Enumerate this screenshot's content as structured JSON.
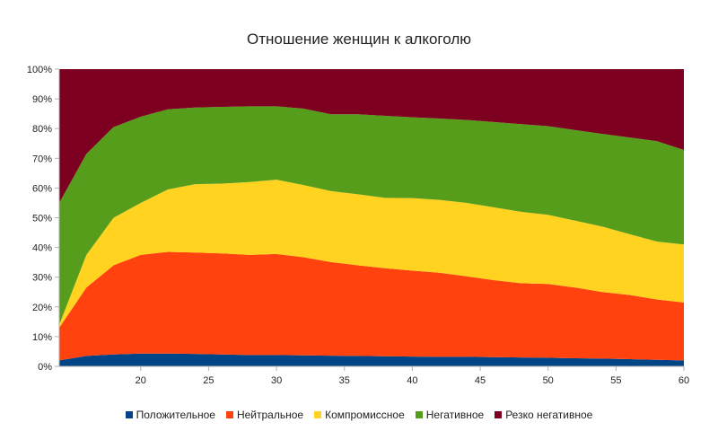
{
  "chart_data": {
    "type": "area",
    "stacked": true,
    "title": "Отношение женщин к алкоголю",
    "xlabel": "",
    "ylabel": "",
    "xlim": [
      14,
      60
    ],
    "ylim": [
      0,
      100
    ],
    "x_ticks": [
      20,
      25,
      30,
      35,
      40,
      45,
      50,
      55,
      60
    ],
    "x_tick_labels": [
      "20",
      "25",
      "30",
      "35",
      "40",
      "45",
      "50",
      "55",
      "60"
    ],
    "y_ticks": [
      0,
      10,
      20,
      30,
      40,
      50,
      60,
      70,
      80,
      90,
      100
    ],
    "y_tick_labels": [
      "0%",
      "10%",
      "20%",
      "30%",
      "40%",
      "50%",
      "60%",
      "70%",
      "80%",
      "90%",
      "100%"
    ],
    "grid": false,
    "legend_position": "bottom",
    "x": [
      14,
      16,
      18,
      20,
      22,
      24,
      26,
      28,
      30,
      32,
      34,
      36,
      38,
      40,
      42,
      44,
      46,
      48,
      50,
      52,
      54,
      56,
      58,
      60
    ],
    "series": [
      {
        "name": "Положительное",
        "color": "#004586",
        "values": [
          2,
          3.5,
          4,
          4.3,
          4.3,
          4.2,
          4,
          3.8,
          3.8,
          3.7,
          3.6,
          3.5,
          3.4,
          3.3,
          3.2,
          3.2,
          3.1,
          3,
          2.9,
          2.7,
          2.6,
          2.4,
          2.2,
          2.0
        ]
      },
      {
        "name": "Нейтральное",
        "color": "#ff420e",
        "values": [
          11,
          23,
          30,
          33.2,
          34.2,
          34.1,
          34,
          33.7,
          34,
          33,
          31.5,
          30.5,
          29.6,
          28.9,
          28.3,
          27.1,
          25.9,
          25,
          24.8,
          23.8,
          22.4,
          21.6,
          20.3,
          19.5
        ]
      },
      {
        "name": "Компромиссное",
        "color": "#ffd320",
        "values": [
          1,
          11,
          16,
          17.5,
          21,
          23,
          23.5,
          24.5,
          25,
          24.3,
          23.9,
          23.9,
          23.7,
          24.4,
          24.5,
          24.7,
          24.5,
          24,
          23.3,
          22.5,
          22,
          20.5,
          19.5,
          19.5
        ]
      },
      {
        "name": "Негативное",
        "color": "#579d1c",
        "values": [
          41,
          34,
          30.5,
          29,
          27,
          25.8,
          25.8,
          25.5,
          24.7,
          25.7,
          25.8,
          26.9,
          27.6,
          27.2,
          27.4,
          27.9,
          28.7,
          29.5,
          29.8,
          30.5,
          31.2,
          32.5,
          33.8,
          31.8
        ]
      },
      {
        "name": "Резко негативное",
        "color": "#7e0021",
        "values": [
          45,
          28.5,
          19.5,
          16,
          13.5,
          12.9,
          12.7,
          12.5,
          12.5,
          13.3,
          15.2,
          15.2,
          15.7,
          16.2,
          16.6,
          17.1,
          17.8,
          18.5,
          19.2,
          20.5,
          21.8,
          23,
          24.2,
          27.2
        ]
      }
    ]
  }
}
